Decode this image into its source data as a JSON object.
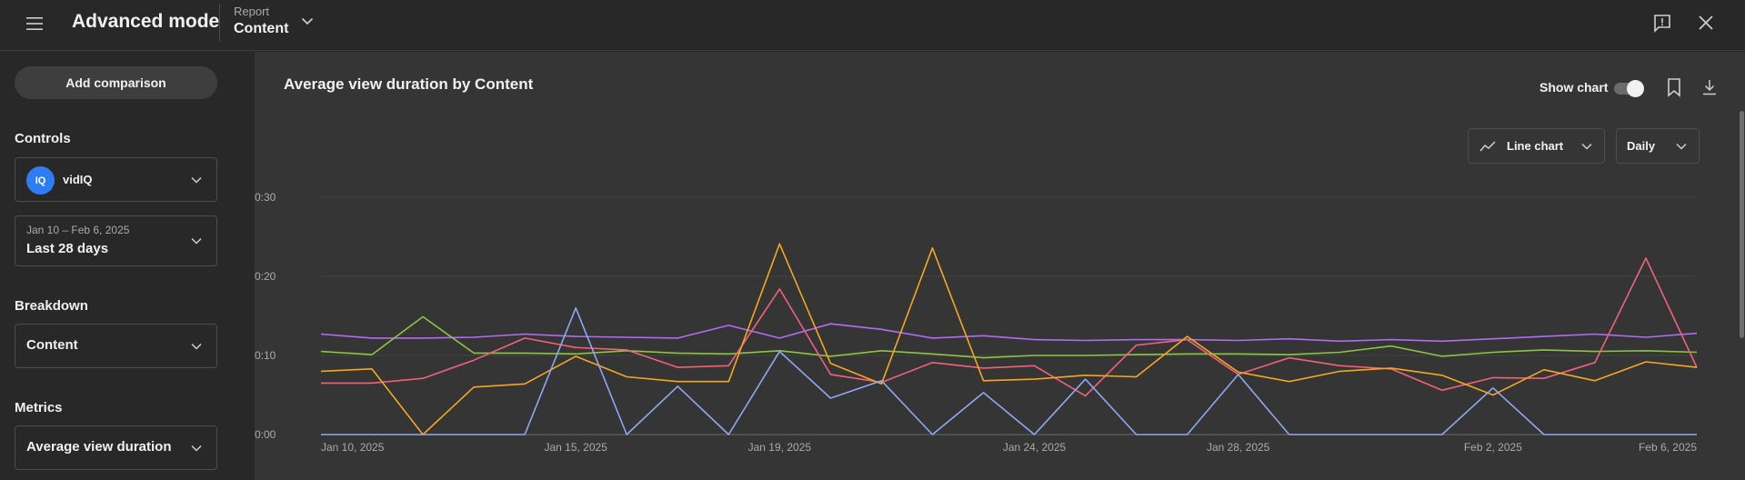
{
  "header": {
    "app_title": "Advanced mode",
    "report_label": "Report",
    "report_value": "Content",
    "icons": {
      "menu": "hamburger-menu-icon",
      "dropdown": "chevron-down-icon",
      "feedback": "feedback-icon",
      "close": "close-icon"
    }
  },
  "sidebar": {
    "add_comparison": "Add comparison",
    "controls_title": "Controls",
    "channel": {
      "avatar_text": "IQ",
      "name": "vidIQ",
      "avatar_color": "#2f7df6"
    },
    "date": {
      "range": "Jan 10 – Feb 6, 2025",
      "preset": "Last 28 days"
    },
    "breakdown_title": "Breakdown",
    "breakdown_value": "Content",
    "metrics_title": "Metrics",
    "metrics_value": "Average view duration"
  },
  "main": {
    "title": "Average view duration by Content",
    "show_chart_label": "Show chart",
    "show_chart_on": true,
    "chart_type_button": "Line chart",
    "interval_button": "Daily"
  },
  "chart_data": {
    "type": "line",
    "title": "Average view duration by Content",
    "xlabel": "",
    "ylabel": "",
    "ylim": [
      0,
      30
    ],
    "y_unit": "seconds",
    "y_ticks": [
      0,
      10,
      20,
      30
    ],
    "y_tick_labels": [
      "0:00",
      "0:10",
      "0:20",
      "0:30"
    ],
    "x": [
      "Jan 10",
      "Jan 11",
      "Jan 12",
      "Jan 13",
      "Jan 14",
      "Jan 15",
      "Jan 16",
      "Jan 17",
      "Jan 18",
      "Jan 19",
      "Jan 20",
      "Jan 21",
      "Jan 22",
      "Jan 23",
      "Jan 24",
      "Jan 25",
      "Jan 26",
      "Jan 27",
      "Jan 28",
      "Jan 29",
      "Jan 30",
      "Jan 31",
      "Feb 1",
      "Feb 2",
      "Feb 3",
      "Feb 4",
      "Feb 5",
      "Feb 6"
    ],
    "x_tick_labels": [
      "Jan 10, 2025",
      "Jan 15, 2025",
      "Jan 19, 2025",
      "Jan 24, 2025",
      "Jan 28, 2025",
      "Feb 2, 2025",
      "Feb 6, 2025"
    ],
    "x_tick_indices": [
      0,
      5,
      9,
      14,
      18,
      23,
      27
    ],
    "grid": true,
    "legend": "none",
    "series": [
      {
        "color": "#b36bf5",
        "values": [
          12.7,
          12.2,
          12.2,
          12.3,
          12.7,
          12.4,
          12.3,
          12.2,
          13.8,
          12.2,
          14.0,
          13.3,
          12.2,
          12.5,
          12.0,
          11.9,
          12.0,
          12.0,
          11.9,
          12.1,
          11.8,
          12.0,
          11.8,
          12.1,
          12.4,
          12.7,
          12.3,
          12.8
        ]
      },
      {
        "color": "#8cc63e",
        "values": [
          10.5,
          10.1,
          14.9,
          10.3,
          10.3,
          10.2,
          10.6,
          10.3,
          10.2,
          10.6,
          9.9,
          10.6,
          10.2,
          9.7,
          10.0,
          10.0,
          10.1,
          10.2,
          10.2,
          10.1,
          10.4,
          11.2,
          9.9,
          10.4,
          10.7,
          10.5,
          10.6,
          10.4
        ]
      },
      {
        "color": "#f0627c",
        "values": [
          6.5,
          6.5,
          7.1,
          9.4,
          12.2,
          11.0,
          10.7,
          8.5,
          8.7,
          18.4,
          7.6,
          6.6,
          9.1,
          8.4,
          8.7,
          4.9,
          11.3,
          12.0,
          7.6,
          9.7,
          8.7,
          8.3,
          5.6,
          7.2,
          7.1,
          9.1,
          22.3,
          8.5
        ]
      },
      {
        "color": "#f5a623",
        "values": [
          8.0,
          8.3,
          0.0,
          6.0,
          6.4,
          9.9,
          7.3,
          6.7,
          6.7,
          24.1,
          9.0,
          6.4,
          23.6,
          6.8,
          7.0,
          7.5,
          7.3,
          12.4,
          7.9,
          6.7,
          8.0,
          8.4,
          7.5,
          5.0,
          8.2,
          6.8,
          9.2,
          8.5
        ]
      },
      {
        "color": "#8ea8f2",
        "values": [
          0.0,
          0.0,
          0.0,
          0.0,
          0.0,
          16.0,
          0.0,
          6.1,
          0.0,
          10.5,
          4.6,
          6.8,
          0.0,
          5.3,
          0.0,
          7.0,
          0.0,
          0.0,
          7.6,
          0.0,
          0.0,
          0.0,
          0.0,
          5.9,
          0.0,
          0.0,
          0.0,
          0.0
        ]
      }
    ]
  },
  "colors": {
    "page_bg": "#282828",
    "card_bg": "#353535",
    "accent_avatar": "#2f7df6"
  }
}
